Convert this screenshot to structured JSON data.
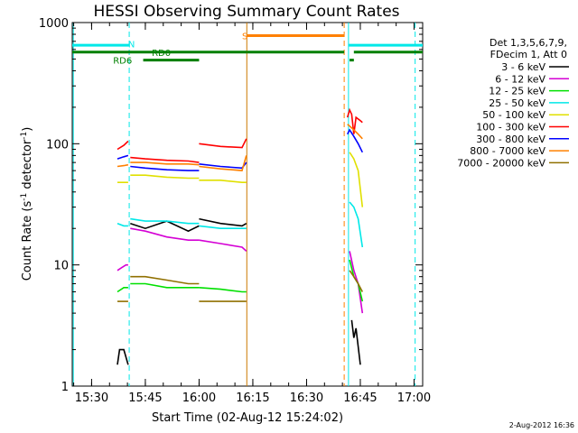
{
  "chart_data": {
    "type": "line",
    "title": "HESSI Observing Summary Count Rates",
    "xlabel": "Start Time (02-Aug-12 15:24:02)",
    "ylabel_parts": [
      "Count Rate (s",
      "-1",
      " detector",
      "-1",
      ")"
    ],
    "ylabel": "Count Rate (s-1 detector-1)",
    "y_scale": "log",
    "ylim": [
      1,
      1000
    ],
    "xlim": [
      15.41,
      17.04
    ],
    "y_ticks": [
      1,
      10,
      100,
      1000
    ],
    "y_tick_labels": [
      "1",
      "10",
      "100",
      "1000"
    ],
    "x_ticks": [
      15.5,
      15.75,
      16.0,
      16.25,
      16.5,
      16.75,
      17.0
    ],
    "x_tick_labels": [
      "15:30",
      "15:45",
      "16:00",
      "16:15",
      "16:30",
      "16:45",
      "17:00"
    ],
    "grid": false,
    "legend_placement": "top-right outside",
    "legend_header": [
      "Det 1,3,5,6,7,9,",
      "FDecim 1, Att 0"
    ],
    "series": [
      {
        "name": "3 - 6 keV",
        "color": "#000000",
        "segments": [
          {
            "x": [
              15.62,
              15.63,
              15.65,
              15.67
            ],
            "y": [
              1.5,
              2.0,
              2.0,
              1.5
            ]
          },
          {
            "x": [
              15.68,
              15.75,
              15.85,
              15.95,
              16.0
            ],
            "y": [
              22,
              20,
              23,
              19,
              21
            ]
          },
          {
            "x": [
              16.0,
              16.1,
              16.2,
              16.22
            ],
            "y": [
              24,
              22,
              21,
              22
            ]
          },
          {
            "x": [
              16.71,
              16.72,
              16.73,
              16.75
            ],
            "y": [
              3.5,
              2.5,
              3.0,
              1.5
            ]
          }
        ]
      },
      {
        "name": "6 - 12 keV",
        "color": "#d400d4",
        "segments": [
          {
            "x": [
              15.62,
              15.64,
              15.66,
              15.67
            ],
            "y": [
              9,
              9.5,
              10,
              10
            ]
          },
          {
            "x": [
              15.68,
              15.75,
              15.85,
              15.95,
              16.0
            ],
            "y": [
              20,
              19,
              17,
              16,
              16
            ]
          },
          {
            "x": [
              16.0,
              16.1,
              16.2,
              16.22
            ],
            "y": [
              16,
              15,
              14,
              13
            ]
          },
          {
            "x": [
              16.7,
              16.72,
              16.74,
              16.76
            ],
            "y": [
              13,
              9,
              7,
              4
            ]
          }
        ]
      },
      {
        "name": "12 - 25 keV",
        "color": "#00e000",
        "segments": [
          {
            "x": [
              15.62,
              15.65,
              15.67
            ],
            "y": [
              6,
              6.5,
              6.5
            ]
          },
          {
            "x": [
              15.68,
              15.75,
              15.85,
              15.95,
              16.0
            ],
            "y": [
              7,
              7,
              6.5,
              6.5,
              6.5
            ]
          },
          {
            "x": [
              16.0,
              16.1,
              16.2,
              16.22
            ],
            "y": [
              6.5,
              6.3,
              6.0,
              6.0
            ]
          },
          {
            "x": [
              16.7,
              16.72,
              16.74,
              16.76
            ],
            "y": [
              11,
              8,
              7,
              5
            ]
          }
        ]
      },
      {
        "name": "25 - 50 keV",
        "color": "#00e8e8",
        "segments": [
          {
            "x": [
              15.62,
              15.65,
              15.67
            ],
            "y": [
              22,
              21,
              21
            ]
          },
          {
            "x": [
              15.68,
              15.75,
              15.85,
              15.95,
              16.0
            ],
            "y": [
              24,
              23,
              23,
              22,
              22
            ]
          },
          {
            "x": [
              16.0,
              16.1,
              16.2,
              16.22
            ],
            "y": [
              21,
              20,
              20,
              20
            ]
          },
          {
            "x": [
              16.7,
              16.72,
              16.74,
              16.76
            ],
            "y": [
              33,
              30,
              24,
              14
            ]
          }
        ]
      },
      {
        "name": "50 - 100 keV",
        "color": "#e0e000",
        "segments": [
          {
            "x": [
              15.62,
              15.65,
              15.67
            ],
            "y": [
              48,
              48,
              48
            ]
          },
          {
            "x": [
              15.68,
              15.75,
              15.85,
              15.95,
              16.0
            ],
            "y": [
              55,
              55,
              53,
              52,
              52
            ]
          },
          {
            "x": [
              16.0,
              16.1,
              16.2,
              16.22
            ],
            "y": [
              50,
              50,
              48,
              48
            ]
          },
          {
            "x": [
              16.7,
              16.72,
              16.74,
              16.76
            ],
            "y": [
              85,
              75,
              60,
              30
            ]
          }
        ]
      },
      {
        "name": "100 - 300 keV",
        "color": "#ff0000",
        "segments": [
          {
            "x": [
              15.62,
              15.65,
              15.67
            ],
            "y": [
              90,
              97,
              105
            ]
          },
          {
            "x": [
              15.68,
              15.75,
              15.85,
              15.95,
              16.0
            ],
            "y": [
              77,
              75,
              73,
              72,
              70
            ]
          },
          {
            "x": [
              16.0,
              16.1,
              16.2,
              16.22
            ],
            "y": [
              100,
              95,
              93,
              110
            ]
          },
          {
            "x": [
              16.69,
              16.7,
              16.71,
              16.72,
              16.73,
              16.75,
              16.76
            ],
            "y": [
              165,
              190,
              175,
              120,
              165,
              155,
              150
            ]
          }
        ]
      },
      {
        "name": "300 - 800 keV",
        "color": "#0000ff",
        "segments": [
          {
            "x": [
              15.62,
              15.65,
              15.67
            ],
            "y": [
              75,
              78,
              80
            ]
          },
          {
            "x": [
              15.68,
              15.75,
              15.85,
              15.95,
              16.0
            ],
            "y": [
              65,
              63,
              61,
              60,
              60
            ]
          },
          {
            "x": [
              16.0,
              16.1,
              16.2,
              16.22
            ],
            "y": [
              68,
              65,
              63,
              70
            ]
          },
          {
            "x": [
              16.69,
              16.7,
              16.72,
              16.74,
              16.76
            ],
            "y": [
              120,
              130,
              115,
              100,
              85
            ]
          }
        ]
      },
      {
        "name": "800 - 7000 keV",
        "color": "#ff8000",
        "segments": [
          {
            "x": [
              15.62,
              15.65,
              15.67
            ],
            "y": [
              65,
              66,
              67
            ]
          },
          {
            "x": [
              15.68,
              15.75,
              15.85,
              15.95,
              16.0
            ],
            "y": [
              70,
              70,
              68,
              68,
              67
            ]
          },
          {
            "x": [
              16.0,
              16.1,
              16.2,
              16.22
            ],
            "y": [
              65,
              62,
              60,
              80
            ]
          },
          {
            "x": [
              16.69,
              16.7,
              16.72,
              16.74,
              16.76
            ],
            "y": [
              145,
              140,
              130,
              120,
              110
            ]
          }
        ]
      },
      {
        "name": "7000 - 20000 keV",
        "color": "#907000",
        "segments": [
          {
            "x": [
              15.62,
              15.65,
              15.67
            ],
            "y": [
              5,
              5,
              5
            ]
          },
          {
            "x": [
              15.68,
              15.75,
              15.85,
              15.95,
              16.0
            ],
            "y": [
              8,
              8,
              7.5,
              7,
              7
            ]
          },
          {
            "x": [
              16.0,
              16.1,
              16.2,
              16.22
            ],
            "y": [
              5,
              5,
              5,
              5
            ]
          },
          {
            "x": [
              16.7,
              16.72,
              16.74,
              16.76
            ],
            "y": [
              9,
              8,
              7,
              6
            ]
          }
        ]
      }
    ],
    "vertical_lines": [
      {
        "x": 15.415,
        "color": "#00e8e8",
        "style": "solid"
      },
      {
        "x": 15.675,
        "color": "#00e8e8",
        "style": "dashed"
      },
      {
        "x": 16.222,
        "color": "#cc7a00",
        "style": "solid"
      },
      {
        "x": 16.675,
        "color": "#ff8000",
        "style": "dashed"
      },
      {
        "x": 16.695,
        "color": "#00e8e8",
        "style": "solid"
      },
      {
        "x": 17.005,
        "color": "#00e8e8",
        "style": "dashed"
      }
    ],
    "state_bars": [
      {
        "label": "N",
        "color": "#00e8e8",
        "x": [
          [
            15.41,
            15.675
          ],
          [
            16.695,
            17.04
          ]
        ],
        "y": 650,
        "label_x": 15.67,
        "label_y": 670
      },
      {
        "label": "S",
        "color": "#ff8000",
        "x": [
          [
            16.222,
            16.675
          ]
        ],
        "y": 780,
        "label_x": 16.2,
        "label_y": 780
      },
      {
        "label": "RD0",
        "color": "#008000",
        "x": [
          [
            15.41,
            16.222
          ],
          [
            16.222,
            16.675
          ],
          [
            16.72,
            17.04
          ]
        ],
        "y": 570,
        "label_x": 15.78,
        "label_y": 570
      },
      {
        "label": "RD6",
        "color": "#008000",
        "x": [
          [
            15.74,
            16.0
          ],
          [
            16.7,
            16.72
          ]
        ],
        "y": 490,
        "label_x": 15.6,
        "label_y": 490
      }
    ],
    "timestamp": "2-Aug-2012 16:36"
  }
}
